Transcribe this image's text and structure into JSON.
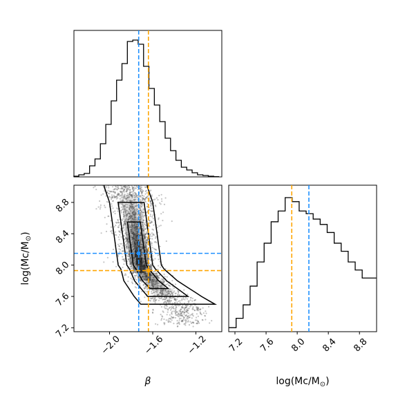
{
  "chart_data": [
    {
      "type": "histogram",
      "panel": "top-left",
      "parameter": "β",
      "x": [
        -2.31,
        -2.26,
        -2.21,
        -2.16,
        -2.11,
        -2.06,
        -2.01,
        -1.96,
        -1.91,
        -1.86,
        -1.81,
        -1.76,
        -1.71,
        -1.66,
        -1.61,
        -1.56,
        -1.51,
        -1.46,
        -1.41,
        -1.36,
        -1.31,
        -1.26,
        -1.21,
        -1.16,
        -1.11,
        -1.06,
        -1.01
      ],
      "counts": [
        0.5,
        1.5,
        2.5,
        8,
        13,
        24,
        38,
        55,
        70,
        82,
        98,
        99,
        96,
        80,
        64,
        52,
        40,
        28,
        19,
        12,
        7,
        5,
        3,
        1.5,
        1,
        0.5,
        0.2
      ],
      "xlim": [
        -2.33,
        -0.96
      ],
      "markers": {
        "blue": -1.73,
        "orange": -1.64
      },
      "tick_labels": []
    },
    {
      "type": "scatter",
      "subtype": "2d-density-contour",
      "panel": "bottom-left",
      "xlim": [
        -2.33,
        -0.96
      ],
      "ylim": [
        7.15,
        9.02
      ],
      "xticks": [
        -2.0,
        -1.6,
        -1.2
      ],
      "xtick_labels": [
        "−2.0",
        "−1.6",
        "−1.2"
      ],
      "yticks": [
        7.2,
        7.6,
        8.0,
        8.4,
        8.8
      ],
      "ytick_labels": [
        "7.2",
        "7.6",
        "8.0",
        "8.4",
        "8.8"
      ],
      "xlabel": "β",
      "ylabel": "log(Mc/M",
      "ylabel_sub": "⊙",
      "ylabel_end": ")",
      "ridge": [
        [
          -1.85,
          9.0
        ],
        [
          -1.8,
          8.8
        ],
        [
          -1.76,
          8.4
        ],
        [
          -1.72,
          8.0
        ],
        [
          -1.62,
          7.8
        ],
        [
          -1.46,
          7.6
        ],
        [
          -1.32,
          7.45
        ]
      ],
      "markers": {
        "blue": [
          -1.73,
          8.15
        ],
        "orange": [
          -1.64,
          7.93
        ]
      }
    },
    {
      "type": "histogram",
      "panel": "bottom-right",
      "x": [
        7.17,
        7.26,
        7.35,
        7.44,
        7.53,
        7.62,
        7.71,
        7.8,
        7.89,
        7.98,
        8.07,
        8.16,
        8.25,
        8.34,
        8.43,
        8.52,
        8.61,
        8.7,
        8.79,
        8.88,
        8.97
      ],
      "counts": [
        3,
        10,
        20,
        34,
        52,
        66,
        82,
        90,
        100,
        97,
        90,
        88,
        84,
        80,
        74,
        66,
        60,
        52,
        46,
        40,
        40
      ],
      "xlim": [
        7.12,
        9.02
      ],
      "xticks": [
        7.2,
        7.6,
        8.0,
        8.4,
        8.8
      ],
      "xtick_labels": [
        "7.2",
        "7.6",
        "8.0",
        "8.4",
        "8.8"
      ],
      "xlabel": "log(Mc/M",
      "xlabel_sub": "⊙",
      "xlabel_end": ")",
      "markers": {
        "blue": 8.15,
        "orange": 7.93
      }
    }
  ],
  "colors": {
    "blue": "#1e90ff",
    "orange": "#ffa500",
    "hist": "#000000",
    "points": "#555555"
  }
}
